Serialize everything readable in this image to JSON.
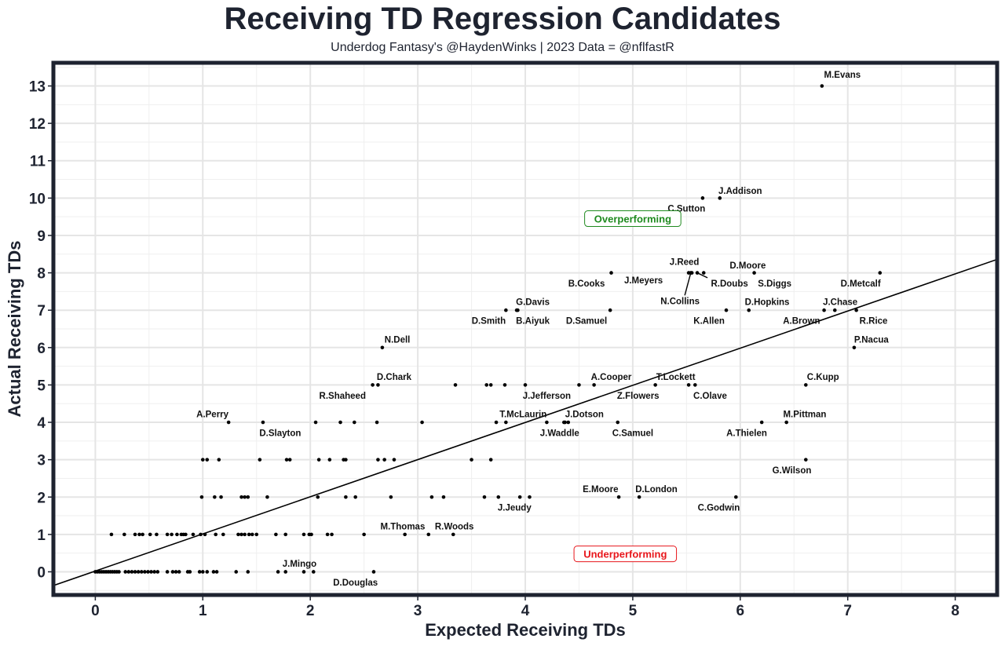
{
  "chart_data": {
    "type": "scatter",
    "title": "Receiving TD Regression Candidates",
    "subtitle": "Underdog Fantasy's @HaydenWinks | 2023 Data = @nflfastR",
    "xlabel": "Expected Receiving TDs",
    "ylabel": "Actual Receiving TDs",
    "xlim": [
      -0.39,
      8.39
    ],
    "ylim": [
      -0.62,
      13.62
    ],
    "x_ticks": [
      0,
      1,
      2,
      3,
      4,
      5,
      6,
      7,
      8
    ],
    "y_ticks": [
      0,
      1,
      2,
      3,
      4,
      5,
      6,
      7,
      8,
      9,
      10,
      11,
      12,
      13
    ],
    "grid": true,
    "colors": {
      "frame": "#1e2330",
      "grid": "#e5e5e5",
      "point": "#000000",
      "over": "#1f8a1f",
      "under": "#e8161b"
    },
    "regression_line": {
      "intercept": 0.02,
      "slope": 0.994
    },
    "annotations": [
      {
        "text": "Overperforming",
        "x": 5.0,
        "y": 9.45,
        "kind": "over"
      },
      {
        "text": "Underperforming",
        "x": 4.93,
        "y": 0.48,
        "kind": "under"
      }
    ],
    "labeled_points": [
      {
        "name": "M.Evans",
        "x": 6.76,
        "y": 13,
        "lx": 6.95,
        "ly": 13.3
      },
      {
        "name": "J.Addison",
        "x": 5.81,
        "y": 10,
        "lx": 6.0,
        "ly": 10.2
      },
      {
        "name": "C.Sutton",
        "x": 5.65,
        "y": 10,
        "lx": 5.5,
        "ly": 9.72
      },
      {
        "name": "J.Reed",
        "x": 5.52,
        "y": 8,
        "lx": 5.48,
        "ly": 8.3
      },
      {
        "name": "D.Moore",
        "x": 5.66,
        "y": 8,
        "lx": 6.07,
        "ly": 8.2
      },
      {
        "name": "J.Meyers",
        "x": 5.55,
        "y": 8,
        "lx": 5.1,
        "ly": 7.8
      },
      {
        "name": "N.Collins",
        "x": 5.54,
        "y": 8,
        "lx": 5.44,
        "ly": 7.25,
        "leader": true
      },
      {
        "name": "R.Doubs",
        "x": 5.6,
        "y": 8,
        "lx": 5.9,
        "ly": 7.72,
        "leader": true
      },
      {
        "name": "S.Diggs",
        "x": 6.13,
        "y": 8,
        "lx": 6.32,
        "ly": 7.72
      },
      {
        "name": "D.Metcalf",
        "x": 7.3,
        "y": 8,
        "lx": 7.12,
        "ly": 7.72
      },
      {
        "name": "B.Cooks",
        "x": 4.8,
        "y": 8,
        "lx": 4.57,
        "ly": 7.72
      },
      {
        "name": "D.Samuel",
        "x": 4.79,
        "y": 7,
        "lx": 4.57,
        "ly": 6.72
      },
      {
        "name": "K.Allen",
        "x": 5.87,
        "y": 7,
        "lx": 5.71,
        "ly": 6.72
      },
      {
        "name": "D.Hopkins",
        "x": 6.08,
        "y": 7,
        "lx": 6.25,
        "ly": 7.22
      },
      {
        "name": "J.Chase",
        "x": 6.88,
        "y": 7,
        "lx": 6.93,
        "ly": 7.22
      },
      {
        "name": "A.Brown",
        "x": 6.78,
        "y": 7,
        "lx": 6.57,
        "ly": 6.72
      },
      {
        "name": "R.Rice",
        "x": 7.08,
        "y": 7,
        "lx": 7.24,
        "ly": 6.72
      },
      {
        "name": "P.Nacua",
        "x": 7.06,
        "y": 6,
        "lx": 7.22,
        "ly": 6.22
      },
      {
        "name": "G.Davis",
        "x": 3.92,
        "y": 7,
        "lx": 4.07,
        "ly": 7.22
      },
      {
        "name": "D.Smith",
        "x": 3.82,
        "y": 7,
        "lx": 3.66,
        "ly": 6.72
      },
      {
        "name": "B.Aiyuk",
        "x": 3.93,
        "y": 7,
        "lx": 4.07,
        "ly": 6.72
      },
      {
        "name": "N.Dell",
        "x": 2.67,
        "y": 6,
        "lx": 2.81,
        "ly": 6.22
      },
      {
        "name": "D.Chark",
        "x": 2.63,
        "y": 5,
        "lx": 2.78,
        "ly": 5.22
      },
      {
        "name": "R.Shaheed",
        "x": 2.58,
        "y": 5,
        "lx": 2.3,
        "ly": 4.72
      },
      {
        "name": "A.Cooper",
        "x": 4.64,
        "y": 5,
        "lx": 4.8,
        "ly": 5.22
      },
      {
        "name": "J.Jefferson",
        "x": 4.5,
        "y": 5,
        "lx": 4.2,
        "ly": 4.72
      },
      {
        "name": "T.Lockett",
        "x": 5.21,
        "y": 5,
        "lx": 5.4,
        "ly": 5.22
      },
      {
        "name": "Z.Flowers",
        "x": 5.52,
        "y": 5,
        "lx": 5.05,
        "ly": 4.72
      },
      {
        "name": "C.Olave",
        "x": 5.58,
        "y": 5,
        "lx": 5.72,
        "ly": 4.72
      },
      {
        "name": "C.Kupp",
        "x": 6.61,
        "y": 5,
        "lx": 6.77,
        "ly": 5.22
      },
      {
        "name": "T.McLaurin",
        "x": 3.82,
        "y": 4,
        "lx": 3.98,
        "ly": 4.22
      },
      {
        "name": "J.Dotson",
        "x": 4.37,
        "y": 4,
        "lx": 4.55,
        "ly": 4.22
      },
      {
        "name": "J.Waddle",
        "x": 4.4,
        "y": 4,
        "lx": 4.32,
        "ly": 3.72
      },
      {
        "name": "C.Samuel",
        "x": 4.86,
        "y": 4,
        "lx": 5.0,
        "ly": 3.72
      },
      {
        "name": "A.Thielen",
        "x": 6.2,
        "y": 4,
        "lx": 6.06,
        "ly": 3.72
      },
      {
        "name": "M.Pittman",
        "x": 6.43,
        "y": 4,
        "lx": 6.6,
        "ly": 4.22
      },
      {
        "name": "A.Perry",
        "x": 1.24,
        "y": 4,
        "lx": 1.09,
        "ly": 4.22
      },
      {
        "name": "D.Slayton",
        "x": 1.56,
        "y": 4,
        "lx": 1.72,
        "ly": 3.72
      },
      {
        "name": "G.Wilson",
        "x": 6.61,
        "y": 3,
        "lx": 6.48,
        "ly": 2.72
      },
      {
        "name": "E.Moore",
        "x": 4.87,
        "y": 2,
        "lx": 4.7,
        "ly": 2.22
      },
      {
        "name": "D.London",
        "x": 5.06,
        "y": 2,
        "lx": 5.22,
        "ly": 2.22
      },
      {
        "name": "C.Godwin",
        "x": 5.96,
        "y": 2,
        "lx": 5.8,
        "ly": 1.72
      },
      {
        "name": "J.Jeudy",
        "x": 4.04,
        "y": 2,
        "lx": 3.9,
        "ly": 1.72
      },
      {
        "name": "M.Thomas",
        "x": 2.88,
        "y": 1,
        "lx": 2.86,
        "ly": 1.22
      },
      {
        "name": "R.Woods",
        "x": 3.33,
        "y": 1,
        "lx": 3.34,
        "ly": 1.22
      },
      {
        "name": "J.Mingo",
        "x": 1.77,
        "y": 0,
        "lx": 1.9,
        "ly": 0.22
      },
      {
        "name": "D.Douglas",
        "x": 2.59,
        "y": 0,
        "lx": 2.42,
        "ly": -0.28
      }
    ],
    "unlabeled_points": [
      {
        "x": 3.35,
        "y": 5
      },
      {
        "x": 3.64,
        "y": 5
      },
      {
        "x": 3.68,
        "y": 5
      },
      {
        "x": 3.81,
        "y": 5
      },
      {
        "x": 4.0,
        "y": 5
      },
      {
        "x": 2.62,
        "y": 4
      },
      {
        "x": 2.05,
        "y": 4
      },
      {
        "x": 2.28,
        "y": 4
      },
      {
        "x": 2.41,
        "y": 4
      },
      {
        "x": 3.04,
        "y": 4
      },
      {
        "x": 3.73,
        "y": 4
      },
      {
        "x": 4.2,
        "y": 4
      },
      {
        "x": 4.36,
        "y": 4
      },
      {
        "x": 1.0,
        "y": 3
      },
      {
        "x": 1.04,
        "y": 3
      },
      {
        "x": 1.15,
        "y": 3
      },
      {
        "x": 1.53,
        "y": 3
      },
      {
        "x": 1.78,
        "y": 3
      },
      {
        "x": 1.81,
        "y": 3
      },
      {
        "x": 2.08,
        "y": 3
      },
      {
        "x": 2.18,
        "y": 3
      },
      {
        "x": 2.31,
        "y": 3
      },
      {
        "x": 2.33,
        "y": 3
      },
      {
        "x": 2.63,
        "y": 3
      },
      {
        "x": 2.69,
        "y": 3
      },
      {
        "x": 2.78,
        "y": 3
      },
      {
        "x": 3.5,
        "y": 3
      },
      {
        "x": 3.68,
        "y": 3
      },
      {
        "x": 0.99,
        "y": 2
      },
      {
        "x": 1.11,
        "y": 2
      },
      {
        "x": 1.17,
        "y": 2
      },
      {
        "x": 1.36,
        "y": 2
      },
      {
        "x": 1.39,
        "y": 2
      },
      {
        "x": 1.42,
        "y": 2
      },
      {
        "x": 1.6,
        "y": 2
      },
      {
        "x": 2.07,
        "y": 2
      },
      {
        "x": 2.33,
        "y": 2
      },
      {
        "x": 2.42,
        "y": 2
      },
      {
        "x": 2.75,
        "y": 2
      },
      {
        "x": 3.13,
        "y": 2
      },
      {
        "x": 3.24,
        "y": 2
      },
      {
        "x": 3.62,
        "y": 2
      },
      {
        "x": 3.75,
        "y": 2
      },
      {
        "x": 3.95,
        "y": 2
      },
      {
        "x": 0.15,
        "y": 1
      },
      {
        "x": 0.27,
        "y": 1
      },
      {
        "x": 0.37,
        "y": 1
      },
      {
        "x": 0.41,
        "y": 1
      },
      {
        "x": 0.44,
        "y": 1
      },
      {
        "x": 0.51,
        "y": 1
      },
      {
        "x": 0.57,
        "y": 1
      },
      {
        "x": 0.67,
        "y": 1
      },
      {
        "x": 0.71,
        "y": 1
      },
      {
        "x": 0.76,
        "y": 1
      },
      {
        "x": 0.8,
        "y": 1
      },
      {
        "x": 0.82,
        "y": 1
      },
      {
        "x": 0.84,
        "y": 1
      },
      {
        "x": 0.91,
        "y": 1
      },
      {
        "x": 0.98,
        "y": 1
      },
      {
        "x": 1.02,
        "y": 1
      },
      {
        "x": 1.12,
        "y": 1
      },
      {
        "x": 1.19,
        "y": 1
      },
      {
        "x": 1.33,
        "y": 1
      },
      {
        "x": 1.36,
        "y": 1
      },
      {
        "x": 1.39,
        "y": 1
      },
      {
        "x": 1.43,
        "y": 1
      },
      {
        "x": 1.46,
        "y": 1
      },
      {
        "x": 1.5,
        "y": 1
      },
      {
        "x": 1.68,
        "y": 1
      },
      {
        "x": 1.77,
        "y": 1
      },
      {
        "x": 1.94,
        "y": 1
      },
      {
        "x": 1.99,
        "y": 1
      },
      {
        "x": 2.01,
        "y": 1
      },
      {
        "x": 2.16,
        "y": 1
      },
      {
        "x": 2.2,
        "y": 1
      },
      {
        "x": 2.5,
        "y": 1
      },
      {
        "x": 3.1,
        "y": 1
      },
      {
        "x": 0.0,
        "y": 0
      },
      {
        "x": 0.02,
        "y": 0
      },
      {
        "x": 0.04,
        "y": 0
      },
      {
        "x": 0.06,
        "y": 0
      },
      {
        "x": 0.08,
        "y": 0
      },
      {
        "x": 0.1,
        "y": 0
      },
      {
        "x": 0.12,
        "y": 0
      },
      {
        "x": 0.14,
        "y": 0
      },
      {
        "x": 0.16,
        "y": 0
      },
      {
        "x": 0.18,
        "y": 0
      },
      {
        "x": 0.2,
        "y": 0
      },
      {
        "x": 0.22,
        "y": 0
      },
      {
        "x": 0.28,
        "y": 0
      },
      {
        "x": 0.31,
        "y": 0
      },
      {
        "x": 0.34,
        "y": 0
      },
      {
        "x": 0.37,
        "y": 0
      },
      {
        "x": 0.4,
        "y": 0
      },
      {
        "x": 0.43,
        "y": 0
      },
      {
        "x": 0.46,
        "y": 0
      },
      {
        "x": 0.49,
        "y": 0
      },
      {
        "x": 0.52,
        "y": 0
      },
      {
        "x": 0.55,
        "y": 0
      },
      {
        "x": 0.58,
        "y": 0
      },
      {
        "x": 0.67,
        "y": 0
      },
      {
        "x": 0.72,
        "y": 0
      },
      {
        "x": 0.75,
        "y": 0
      },
      {
        "x": 0.78,
        "y": 0
      },
      {
        "x": 0.86,
        "y": 0
      },
      {
        "x": 0.88,
        "y": 0
      },
      {
        "x": 0.97,
        "y": 0
      },
      {
        "x": 1.0,
        "y": 0
      },
      {
        "x": 1.04,
        "y": 0
      },
      {
        "x": 1.1,
        "y": 0
      },
      {
        "x": 1.13,
        "y": 0
      },
      {
        "x": 1.31,
        "y": 0
      },
      {
        "x": 1.42,
        "y": 0
      },
      {
        "x": 1.7,
        "y": 0
      },
      {
        "x": 1.94,
        "y": 0
      },
      {
        "x": 2.03,
        "y": 0
      }
    ]
  }
}
